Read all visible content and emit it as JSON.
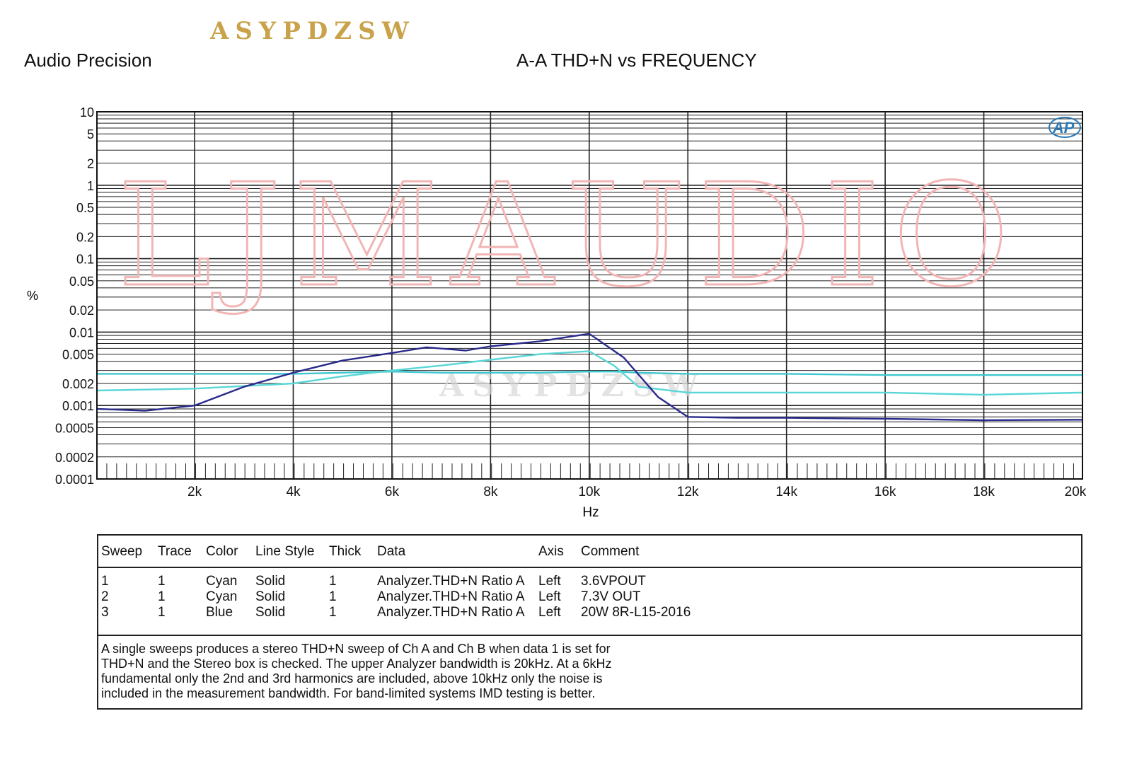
{
  "brand": "ASYPDZSW",
  "vendor": "Audio Precision",
  "watermark": "LJMAUDIO",
  "watermark_small": "ASYPDZSW",
  "logo": "AP",
  "chart_data": {
    "type": "line",
    "title": "A-A THD+N vs FREQUENCY",
    "xlabel": "Hz",
    "ylabel": "%",
    "xlim": [
      20,
      20000
    ],
    "ylim": [
      0.0001,
      10
    ],
    "yscale": "log",
    "grid": true,
    "x_ticks": [
      2000,
      4000,
      6000,
      8000,
      10000,
      12000,
      14000,
      16000,
      18000,
      20000
    ],
    "x_tick_labels": [
      "2k",
      "4k",
      "6k",
      "8k",
      "10k",
      "12k",
      "14k",
      "16k",
      "18k",
      "20k"
    ],
    "y_ticks": [
      10,
      5,
      2,
      1,
      0.5,
      0.2,
      0.1,
      0.05,
      0.02,
      0.01,
      0.005,
      0.002,
      0.001,
      0.0005,
      0.0002,
      0.0001
    ],
    "y_tick_labels": [
      "10",
      "5",
      "2",
      "1",
      "0.5",
      "0.2",
      "0.1",
      "0.05",
      "0.02",
      "0.01",
      "0.005",
      "0.002",
      "0.001",
      "0.0005",
      "0.0002",
      "0.0001"
    ],
    "series": [
      {
        "name": "3.6VPOUT",
        "color": "#3fc7cf",
        "x": [
          20,
          2000,
          4000,
          5000,
          6000,
          7000,
          8000,
          9000,
          10000,
          10500,
          11000,
          12000,
          14000,
          16000,
          18000,
          20000
        ],
        "y": [
          0.0027,
          0.0027,
          0.0027,
          0.0028,
          0.0029,
          0.0028,
          0.0028,
          0.0028,
          0.0029,
          0.0029,
          0.0028,
          0.0027,
          0.0027,
          0.0026,
          0.0026,
          0.0026
        ]
      },
      {
        "name": "7.3V OUT",
        "color": "#5ad6d6",
        "x": [
          20,
          2000,
          4000,
          5000,
          6000,
          7000,
          8000,
          9000,
          10000,
          10500,
          11000,
          12000,
          14000,
          16000,
          18000,
          20000
        ],
        "y": [
          0.0016,
          0.0017,
          0.002,
          0.0025,
          0.003,
          0.0035,
          0.0042,
          0.005,
          0.0055,
          0.0035,
          0.0018,
          0.0015,
          0.0015,
          0.0015,
          0.0014,
          0.0015
        ]
      },
      {
        "name": "20W 8R-L15-2016",
        "color": "#2a2a8c",
        "x": [
          20,
          1000,
          2000,
          3000,
          4000,
          5000,
          6000,
          6700,
          7500,
          8000,
          9000,
          10000,
          10700,
          11400,
          12000,
          13000,
          14000,
          16000,
          18000,
          20000
        ],
        "y": [
          0.0009,
          0.00085,
          0.001,
          0.0018,
          0.0028,
          0.0041,
          0.0052,
          0.0062,
          0.0056,
          0.0064,
          0.0075,
          0.0095,
          0.0045,
          0.0013,
          0.0007,
          0.00068,
          0.00068,
          0.00066,
          0.00063,
          0.00064
        ]
      }
    ]
  },
  "legend": {
    "headers": [
      "Sweep",
      "Trace",
      "Color",
      "Line Style",
      "Thick",
      "Data",
      "Axis",
      "Comment"
    ],
    "rows": [
      [
        "1",
        "1",
        "Cyan",
        "Solid",
        "1",
        "Analyzer.THD+N Ratio A",
        "Left",
        "3.6VPOUT"
      ],
      [
        "2",
        "1",
        "Cyan",
        "Solid",
        "1",
        "Analyzer.THD+N Ratio A",
        "Left",
        "7.3V OUT"
      ],
      [
        "3",
        "1",
        "Blue",
        "Solid",
        "1",
        "Analyzer.THD+N Ratio A",
        "Left",
        "20W 8R-L15-2016"
      ]
    ],
    "note": [
      "A single sweeps produces a stereo THD+N sweep of Ch A and Ch B when data 1 is set for",
      "THD+N and the Stereo box is checked.  The upper Analyzer bandwidth is 20kHz.  At a 6kHz",
      "fundamental only the 2nd and 3rd harmonics are included, above 10kHz only the noise is",
      "included in the measurement bandwidth.  For band-limited systems IMD testing is better."
    ]
  }
}
